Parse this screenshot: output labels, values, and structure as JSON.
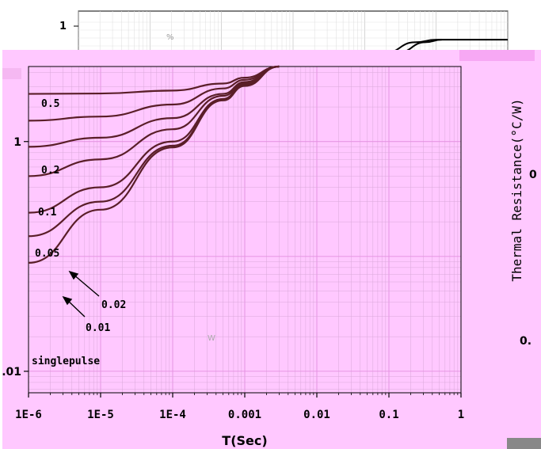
{
  "chart_data": {
    "type": "line",
    "xscale": "log",
    "yscale": "log",
    "xlim": [
      1e-06,
      1
    ],
    "ylim": [
      0.0065,
      4.5
    ],
    "xlabel": "T(Sec)",
    "ylabel": "Thermal Resistance(°C/W)",
    "title": "",
    "grid": true,
    "x_ticks": [
      {
        "value": 1e-06,
        "label": "1E-6"
      },
      {
        "value": 1e-05,
        "label": "1E-5"
      },
      {
        "value": 0.0001,
        "label": "1E-4"
      },
      {
        "value": 0.001,
        "label": "0.001"
      },
      {
        "value": 0.01,
        "label": "0.01"
      },
      {
        "value": 0.1,
        "label": "0.1"
      },
      {
        "value": 1,
        "label": "1"
      }
    ],
    "y_ticks": [
      {
        "value": 1,
        "label": "1"
      },
      {
        "value": 0.01,
        "label": ".01"
      }
    ],
    "right_axis_fragments": [
      "0",
      "0."
    ],
    "back_plot": {
      "y_tick_label": "1",
      "fragment_text": "%",
      "curves": [
        [
          [
            0.0021,
            0.3
          ],
          [
            0.02,
            0.7
          ],
          [
            0.05,
            0.93
          ],
          [
            0.1,
            1
          ],
          [
            1,
            1
          ]
        ],
        [
          [
            0.0045,
            0.3
          ],
          [
            0.03,
            0.7
          ],
          [
            0.07,
            0.93
          ],
          [
            0.12,
            1
          ]
        ]
      ]
    },
    "series": [
      {
        "name": "0.5",
        "points": [
          [
            1e-06,
            2.6
          ],
          [
            1e-05,
            2.62
          ],
          [
            0.0001,
            2.78
          ],
          [
            0.0005,
            3.2
          ],
          [
            0.001,
            3.6
          ],
          [
            0.003,
            4.5
          ]
        ]
      },
      {
        "name": "0.2",
        "points": [
          [
            1e-06,
            1.52
          ],
          [
            1e-05,
            1.65
          ],
          [
            0.0001,
            2.1
          ],
          [
            0.0005,
            2.9
          ],
          [
            0.001,
            3.45
          ],
          [
            0.003,
            4.5
          ]
        ]
      },
      {
        "name": "0.1",
        "points": [
          [
            1e-06,
            0.9
          ],
          [
            1e-05,
            1.08
          ],
          [
            0.0001,
            1.6
          ],
          [
            0.0005,
            2.6
          ],
          [
            0.001,
            3.3
          ],
          [
            0.003,
            4.5
          ]
        ]
      },
      {
        "name": "0.05",
        "points": [
          [
            1e-06,
            0.5
          ],
          [
            1e-05,
            0.7
          ],
          [
            0.0001,
            1.28
          ],
          [
            0.0005,
            2.5
          ],
          [
            0.001,
            3.2
          ],
          [
            0.003,
            4.5
          ]
        ]
      },
      {
        "name": "0.02",
        "points": [
          [
            1e-06,
            0.24
          ],
          [
            1e-05,
            0.4
          ],
          [
            0.0001,
            1.0
          ],
          [
            0.0005,
            2.35
          ],
          [
            0.001,
            3.15
          ],
          [
            0.003,
            4.5
          ]
        ]
      },
      {
        "name": "0.01",
        "points": [
          [
            1e-06,
            0.15
          ],
          [
            1e-05,
            0.3
          ],
          [
            0.0001,
            0.92
          ],
          [
            0.0005,
            2.3
          ],
          [
            0.001,
            3.1
          ],
          [
            0.003,
            4.5
          ]
        ]
      },
      {
        "name": "singlepulse",
        "points": [
          [
            1e-06,
            0.088
          ],
          [
            1e-05,
            0.255
          ],
          [
            0.0001,
            0.89
          ],
          [
            0.0005,
            2.28
          ],
          [
            0.001,
            3.05
          ],
          [
            0.003,
            4.5
          ]
        ]
      }
    ],
    "series_labels": [
      {
        "text": "0.5"
      },
      {
        "text": "0.2"
      },
      {
        "text": "0.1"
      },
      {
        "text": "0.05"
      },
      {
        "text": "0.02"
      },
      {
        "text": "0.01"
      },
      {
        "text": "singlepulse"
      }
    ],
    "watermark": "W",
    "colors": {
      "background": "#ffc8ff",
      "line": "#5a1e28",
      "axis": "#000000",
      "grid": "#d9a9d9"
    }
  }
}
